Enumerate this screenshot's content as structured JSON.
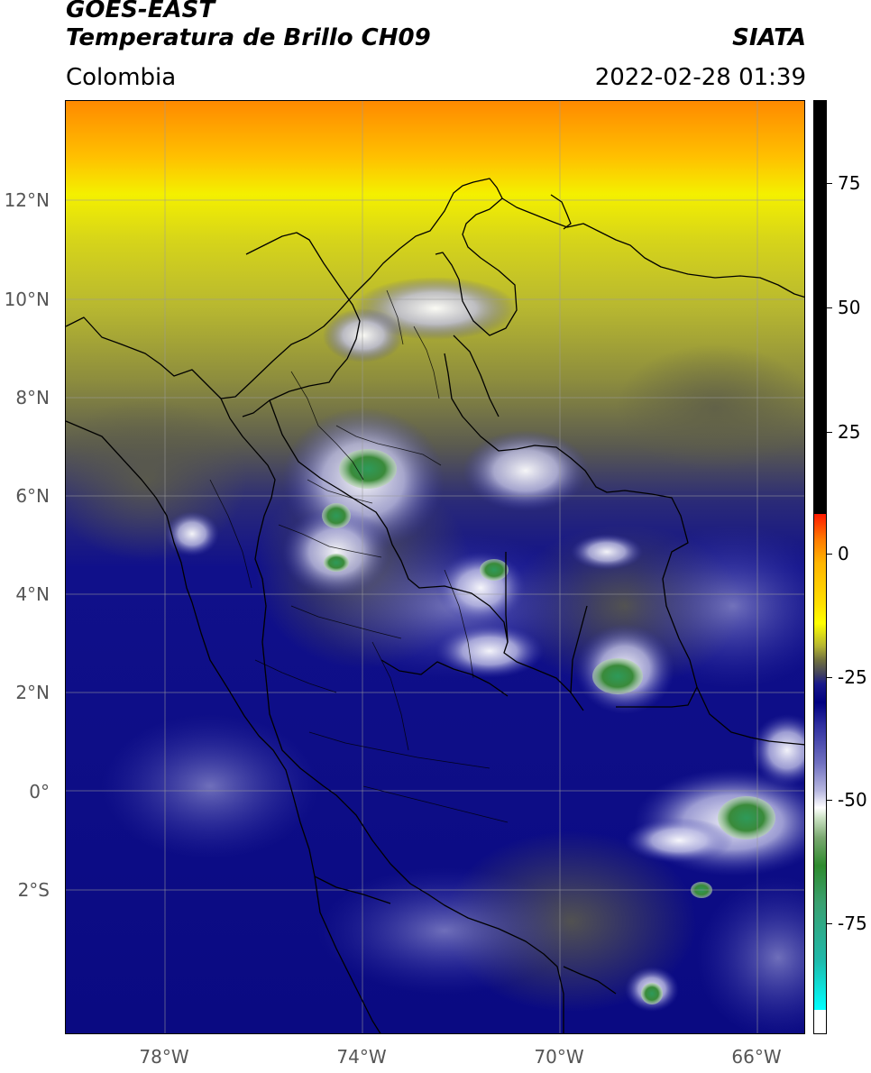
{
  "header": {
    "title_line1": "GOES-EAST",
    "title_line2": "Temperatura de Brillo CH09",
    "source": "SIATA",
    "region": "Colombia",
    "timestamp": "2022-02-28 01:39"
  },
  "map": {
    "latitude_labels": [
      "12°N",
      "10°N",
      "8°N",
      "6°N",
      "4°N",
      "2°N",
      "0°",
      "2°S"
    ],
    "longitude_labels": [
      "78°W",
      "74°W",
      "70°W",
      "66°W"
    ]
  },
  "colorbar": {
    "tick_labels": [
      "75",
      "50",
      "25",
      "0",
      "-25",
      "-50",
      "-75"
    ],
    "colors": {
      "warm_top": "#000000",
      "red": "#ff1a00",
      "orange": "#ff7a00",
      "yellow": "#ffff00",
      "olive": "#707040",
      "navy": "#000080",
      "white": "#ffffff",
      "green": "#2e8b2e",
      "cyan": "#00ffff"
    }
  }
}
